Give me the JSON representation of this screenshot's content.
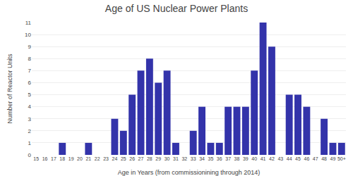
{
  "chart_data": {
    "type": "bar",
    "title": "Age of US Nuclear Power Plants",
    "xlabel": "Age in Years (from commissionining through 2014)",
    "ylabel": "Number of Reactor Units",
    "categories": [
      "15",
      "16",
      "17",
      "18",
      "19",
      "20",
      "21",
      "22",
      "23",
      "24",
      "25",
      "26",
      "27",
      "28",
      "29",
      "30",
      "31",
      "32",
      "33",
      "34",
      "35",
      "36",
      "37",
      "38",
      "39",
      "40",
      "41",
      "42",
      "43",
      "44",
      "45",
      "46",
      "47",
      "48",
      "49",
      "50+"
    ],
    "values": [
      0,
      0,
      0,
      1,
      0,
      0,
      1,
      0,
      0,
      3,
      2,
      5,
      7,
      8,
      6,
      7,
      1,
      0,
      2,
      4,
      1,
      1,
      4,
      4,
      4,
      7,
      11,
      9,
      0,
      5,
      5,
      4,
      0,
      3,
      1,
      1
    ],
    "color": "#3333aa",
    "ylim": [
      0,
      11
    ],
    "yticks": [
      0,
      1,
      2,
      3,
      4,
      5,
      6,
      7,
      8,
      9,
      10,
      11
    ],
    "grid": true
  }
}
